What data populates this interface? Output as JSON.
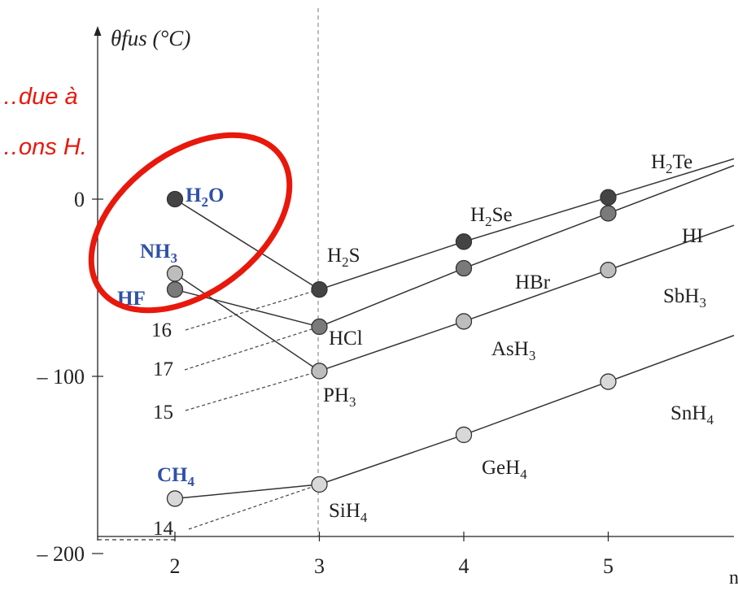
{
  "annotation": {
    "line1": "…due à",
    "line2": "…ons H."
  },
  "colors": {
    "highlight": "#e8180c",
    "blue_label": "#3050a8",
    "dark": "#444444",
    "mid": "#7a7a7a",
    "light": "#bdbdbd",
    "lighter": "#d8d8d8"
  },
  "chart_data": {
    "type": "line",
    "title": "",
    "ylabel": "θfus (°C)",
    "xlabel": "n",
    "x_ticks": [
      "2",
      "3",
      "4",
      "5"
    ],
    "y_ticks": [
      "0",
      "– 100",
      "– 200"
    ],
    "xlim": [
      1.55,
      5.45
    ],
    "ylim": [
      -200,
      80
    ],
    "series": [
      {
        "group": "16",
        "labels": [
          "H2O",
          "H2S",
          "H2Se",
          "H2Te"
        ],
        "x": [
          2,
          3,
          4,
          5
        ],
        "y": [
          0,
          -51,
          -24,
          1
        ],
        "shade": "dark"
      },
      {
        "group": "17",
        "labels": [
          "HF",
          "HCl",
          "HBr",
          "HI"
        ],
        "x": [
          2,
          3,
          4,
          5
        ],
        "y": [
          -51,
          -72,
          -39,
          -8
        ],
        "shade": "mid"
      },
      {
        "group": "15",
        "labels": [
          "NH3",
          "PH3",
          "AsH3",
          "SbH3"
        ],
        "x": [
          2,
          3,
          4,
          5
        ],
        "y": [
          -42,
          -97,
          -69,
          -40
        ],
        "shade": "light"
      },
      {
        "group": "14",
        "labels": [
          "CH4",
          "SiH4",
          "GeH4",
          "SnH4"
        ],
        "x": [
          2,
          3,
          4,
          5
        ],
        "y": [
          -169,
          -161,
          -133,
          -103
        ],
        "shade": "lighter"
      }
    ],
    "extrapolated_ends": [
      "16",
      "17",
      "15",
      "14"
    ],
    "highlighted": [
      "H2O",
      "NH3",
      "HF"
    ]
  }
}
